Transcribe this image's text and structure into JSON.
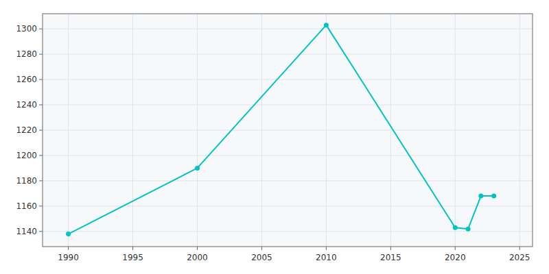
{
  "chart_data": {
    "type": "line",
    "x": [
      1990,
      2000,
      2010,
      2020,
      2021,
      2022,
      2023
    ],
    "values": [
      1138,
      1190,
      1303,
      1143,
      1142,
      1168,
      1168
    ],
    "color": "#00C4C4",
    "marker": "circle",
    "xlim": [
      1988,
      2026
    ],
    "ylim": [
      1128,
      1312
    ],
    "xticks": [
      1990,
      1995,
      2000,
      2005,
      2010,
      2015,
      2020,
      2025
    ],
    "yticks": [
      1140,
      1160,
      1180,
      1200,
      1220,
      1240,
      1260,
      1280,
      1300
    ],
    "grid": true
  }
}
